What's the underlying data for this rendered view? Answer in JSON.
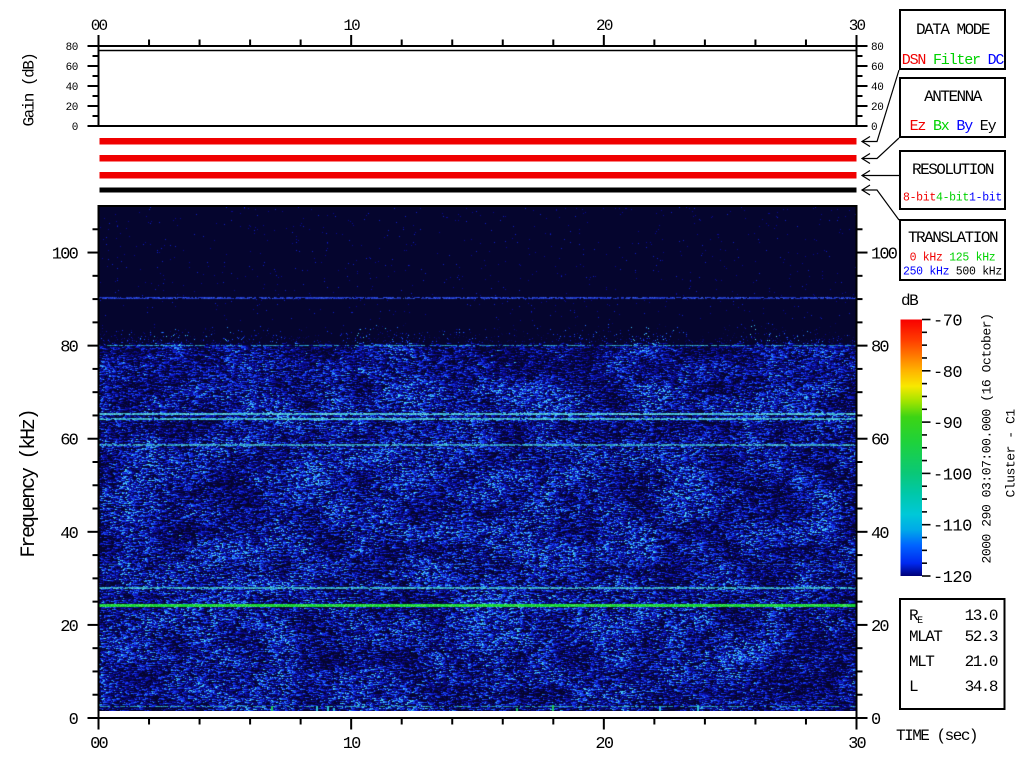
{
  "chart_data": {
    "type": "heatmap",
    "description": "Cluster WBD wideband plasma wave spectrogram with gain panel, instrument status bars, colorbar and legend boxes",
    "time_axis": {
      "label": "TIME (sec)",
      "min": 0,
      "max": 30,
      "major_ticks": [
        0,
        10,
        20,
        30
      ],
      "major_labels": [
        "00",
        "10",
        "20",
        "30"
      ],
      "minor_step": 2
    },
    "freq_axis": {
      "label": "Frequency (kHz)",
      "min": 0,
      "max": 110,
      "major_ticks": [
        0,
        20,
        40,
        60,
        80,
        100
      ],
      "major_labels": [
        "0",
        "20",
        "40",
        "60",
        "80",
        "100"
      ],
      "minor_step": 5
    },
    "gain_axis": {
      "label": "Gain (dB)",
      "min": 0,
      "max": 80,
      "major_ticks": [
        0,
        20,
        40,
        60,
        80
      ],
      "major_labels": [
        "0",
        "20",
        "40",
        "60",
        "80"
      ],
      "minor_step": 10
    },
    "gain_trace_db": 75.5,
    "colorbar": {
      "label": "dB",
      "min": -120,
      "max": -70,
      "major_ticks": [
        -70,
        -80,
        -90,
        -100,
        -110,
        -120
      ],
      "major_labels": [
        "-70",
        "-80",
        "-90",
        "-100",
        "-110",
        "-120"
      ],
      "minor_step": 2.5,
      "gradient": [
        {
          "off": 0.0,
          "c": "#f80000"
        },
        {
          "off": 0.08,
          "c": "#ff3c00"
        },
        {
          "off": 0.14,
          "c": "#ff7800"
        },
        {
          "off": 0.2,
          "c": "#ffb400"
        },
        {
          "off": 0.26,
          "c": "#f8e800"
        },
        {
          "off": 0.32,
          "c": "#a0e400"
        },
        {
          "off": 0.38,
          "c": "#3cd414"
        },
        {
          "off": 0.48,
          "c": "#1ed23c"
        },
        {
          "off": 0.6,
          "c": "#0ac878"
        },
        {
          "off": 0.68,
          "c": "#00c8aa"
        },
        {
          "off": 0.76,
          "c": "#00c8d8"
        },
        {
          "off": 0.82,
          "c": "#00aae8"
        },
        {
          "off": 0.88,
          "c": "#0064ff"
        },
        {
          "off": 0.95,
          "c": "#0028f0"
        },
        {
          "off": 1.0,
          "c": "#000078"
        }
      ]
    },
    "noise": {
      "background": "#05052e",
      "floor_top_khz": 80.2,
      "sparse_above_khz": 85.5,
      "palette": [
        {
          "v": 0.0,
          "c": "#05052e"
        },
        {
          "v": 0.28,
          "c": "#0a0a9a"
        },
        {
          "v": 0.52,
          "c": "#1434f2"
        },
        {
          "v": 0.72,
          "c": "#2466ff"
        },
        {
          "v": 0.86,
          "c": "#30b0f0"
        },
        {
          "v": 1.0,
          "c": "#58dcf8"
        }
      ],
      "dim_bands_khz": [
        [
          71.5,
          80,
          0.85
        ],
        [
          60,
          63.6,
          0.88
        ]
      ],
      "seed": 1234567
    },
    "spectral_lines": [
      {
        "freq_khz": 90.3,
        "color": "#2440e8",
        "density": 0.72,
        "width": 2,
        "bright": "#3c64ff",
        "jmin": 0.65
      },
      {
        "freq_khz": 80.0,
        "color": "#28a0d4",
        "density": 0.55,
        "width": 1,
        "bright": "#48d0ec",
        "jmin": 0.7
      },
      {
        "freq_khz": 65.4,
        "color": "#48d0f0",
        "density": 0.93,
        "width": 2,
        "bright": "#80f0ff",
        "jmin": 0.75
      },
      {
        "freq_khz": 64.2,
        "color": "#40c8ee",
        "density": 0.88,
        "width": 2,
        "bright": "#70e8ff",
        "jmin": 0.72
      },
      {
        "freq_khz": 58.6,
        "color": "#34b0e0",
        "density": 0.8,
        "width": 2,
        "bright": "#60d8f8",
        "jmin": 0.7
      },
      {
        "freq_khz": 33.0,
        "color": "#2050c8",
        "density": 0.3,
        "width": 1,
        "bright": "#3070e0",
        "jmin": 0.7
      },
      {
        "freq_khz": 27.9,
        "color": "#38c0e4",
        "density": 0.85,
        "width": 2,
        "bright": "#66e0f8",
        "jmin": 0.7
      },
      {
        "freq_khz": 24.1,
        "color": "#16e038",
        "density": 1.0,
        "width": 3,
        "bright": "#50f464",
        "jmin": 0.88
      },
      {
        "freq_khz": 2.5,
        "color": "#2ca8cc",
        "density": 0.5,
        "width": 1,
        "bright": "#50d0e8",
        "jmin": 0.7
      }
    ]
  },
  "gain_panel": {
    "ylabel": "Gain (dB)"
  },
  "spectrogram_panel": {
    "ylabel": "Frequency (kHz)"
  },
  "time_label": "TIME (sec)",
  "colorbar_label": "dB",
  "side_text": {
    "datetime": "2000 290 03:07:00.000 (16 October)",
    "spacecraft": "Cluster - C1"
  },
  "legend": {
    "boxes": [
      {
        "title": "DATA MODE",
        "active": "DSN",
        "size": "lg",
        "lines": [
          [
            {
              "label": "DSN",
              "color": "#f00000"
            },
            {
              "label": "Filter",
              "color": "#00d200"
            },
            {
              "label": "DC",
              "color": "#0000ff"
            }
          ]
        ]
      },
      {
        "title": "ANTENNA",
        "active": "Ez",
        "size": "lg",
        "lines": [
          [
            {
              "label": "Ez",
              "color": "#f00000"
            },
            {
              "label": "Bx",
              "color": "#00d200"
            },
            {
              "label": "By",
              "color": "#0000ff"
            },
            {
              "label": "Ey",
              "color": "#000000"
            }
          ]
        ]
      },
      {
        "title": "RESOLUTION",
        "active": "8-bit",
        "size": "sm",
        "sep": "",
        "lines": [
          [
            {
              "label": "8-bit",
              "color": "#f00000"
            },
            {
              "label": "4-bit",
              "color": "#00d200"
            },
            {
              "label": "1-bit",
              "color": "#0000ff"
            }
          ]
        ]
      },
      {
        "title": "TRANSLATION",
        "active": "500 kHz",
        "size": "sm",
        "lines": [
          [
            {
              "label": "0 kHz",
              "color": "#f00000"
            },
            {
              "label": "125 kHz",
              "color": "#00d200"
            }
          ],
          [
            {
              "label": "250 kHz",
              "color": "#0000ff"
            },
            {
              "label": "500 kHz",
              "color": "#000000"
            }
          ]
        ]
      }
    ]
  },
  "info_box": {
    "rows": [
      {
        "label": "R",
        "sub": "E",
        "value": "13.0"
      },
      {
        "label": "MLAT",
        "sub": "",
        "value": "52.3"
      },
      {
        "label": "MLT",
        "sub": "",
        "value": "21.0"
      },
      {
        "label": "L",
        "sub": "",
        "value": "34.8"
      }
    ]
  }
}
